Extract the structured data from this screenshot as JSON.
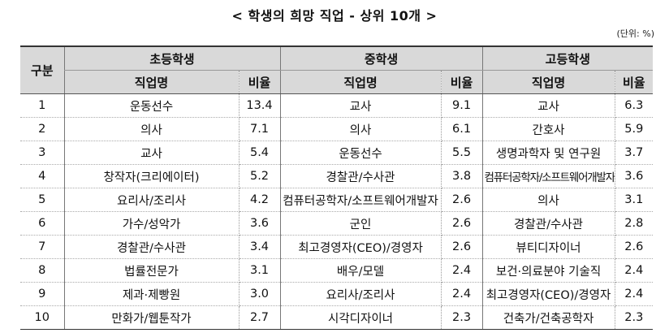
{
  "title": "< 학생의 희망 직업 - 상위 10개 >",
  "unit": "(단위: %)",
  "header": {
    "category": "구분",
    "groups": [
      "초등학생",
      "중학생",
      "고등학생"
    ],
    "job_col": "직업명",
    "ratio_col": "비율"
  },
  "rows": [
    {
      "rank": "1",
      "elem_job": "운동선수",
      "elem_ratio": "13.4",
      "mid_job": "교사",
      "mid_ratio": "9.1",
      "high_job": "교사",
      "high_ratio": "6.3"
    },
    {
      "rank": "2",
      "elem_job": "의사",
      "elem_ratio": "7.1",
      "mid_job": "의사",
      "mid_ratio": "6.1",
      "high_job": "간호사",
      "high_ratio": "5.9"
    },
    {
      "rank": "3",
      "elem_job": "교사",
      "elem_ratio": "5.4",
      "mid_job": "운동선수",
      "mid_ratio": "5.5",
      "high_job": "생명과학자 및 연구원",
      "high_ratio": "3.7"
    },
    {
      "rank": "4",
      "elem_job": "창작자(크리에이터)",
      "elem_ratio": "5.2",
      "mid_job": "경찰관/수사관",
      "mid_ratio": "3.8",
      "high_job": "컴퓨터공학자/소프트웨어개발자",
      "high_ratio": "3.6"
    },
    {
      "rank": "5",
      "elem_job": "요리사/조리사",
      "elem_ratio": "4.2",
      "mid_job": "컴퓨터공학자/소프트웨어개발자",
      "mid_ratio": "2.6",
      "high_job": "의사",
      "high_ratio": "3.1"
    },
    {
      "rank": "6",
      "elem_job": "가수/성악가",
      "elem_ratio": "3.6",
      "mid_job": "군인",
      "mid_ratio": "2.6",
      "high_job": "경찰관/수사관",
      "high_ratio": "2.8"
    },
    {
      "rank": "7",
      "elem_job": "경찰관/수사관",
      "elem_ratio": "3.4",
      "mid_job": "최고경영자(CEO)/경영자",
      "mid_ratio": "2.6",
      "high_job": "뷰티디자이너",
      "high_ratio": "2.6"
    },
    {
      "rank": "8",
      "elem_job": "법률전문가",
      "elem_ratio": "3.1",
      "mid_job": "배우/모델",
      "mid_ratio": "2.4",
      "high_job": "보건·의료분야 기술직",
      "high_ratio": "2.4"
    },
    {
      "rank": "9",
      "elem_job": "제과·제빵원",
      "elem_ratio": "3.0",
      "mid_job": "요리사/조리사",
      "mid_ratio": "2.4",
      "high_job": "최고경영자(CEO)/경영자",
      "high_ratio": "2.4"
    },
    {
      "rank": "10",
      "elem_job": "만화가/웹툰작가",
      "elem_ratio": "2.7",
      "mid_job": "시각디자이너",
      "mid_ratio": "2.3",
      "high_job": "건축가/건축공학자",
      "high_ratio": "2.3"
    }
  ]
}
